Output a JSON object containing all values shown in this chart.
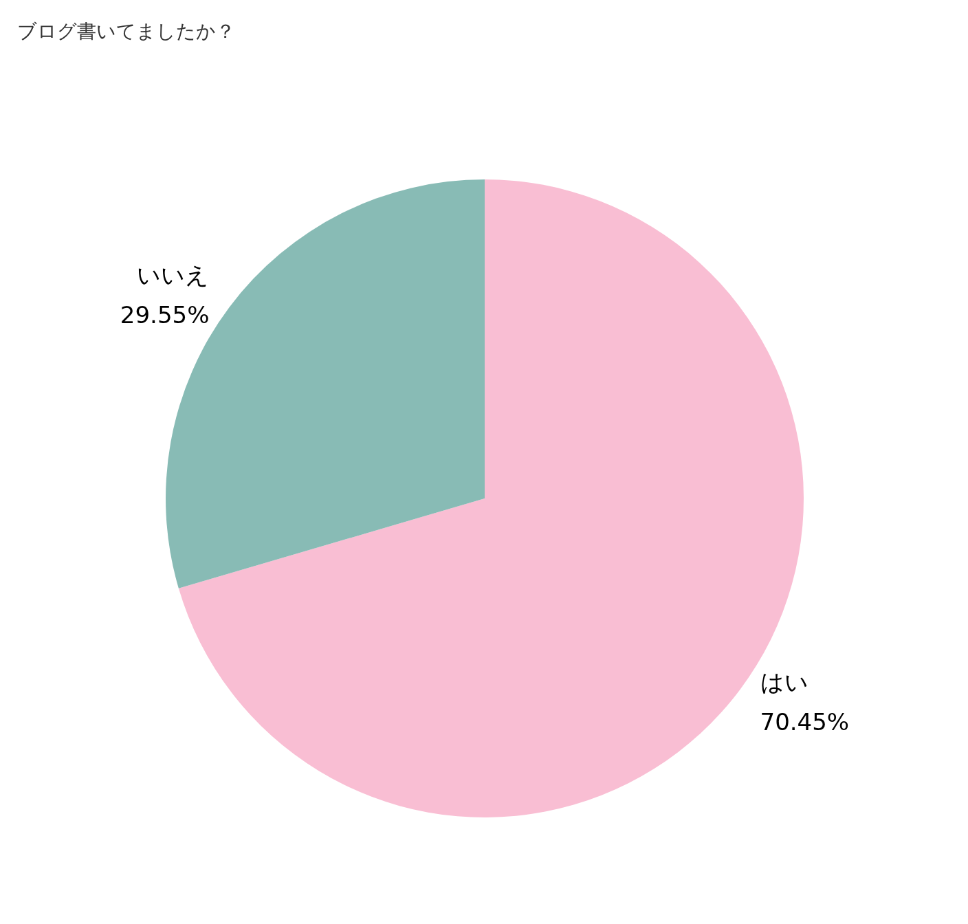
{
  "chart_data": {
    "type": "pie",
    "title": "ブログ書いてましたか？",
    "categories": [
      "はい",
      "いいえ"
    ],
    "values": [
      70.45,
      29.55
    ],
    "colors": [
      "#f9bed3",
      "#88bbb5"
    ],
    "value_labels": [
      "70.45%",
      "29.55%"
    ]
  }
}
